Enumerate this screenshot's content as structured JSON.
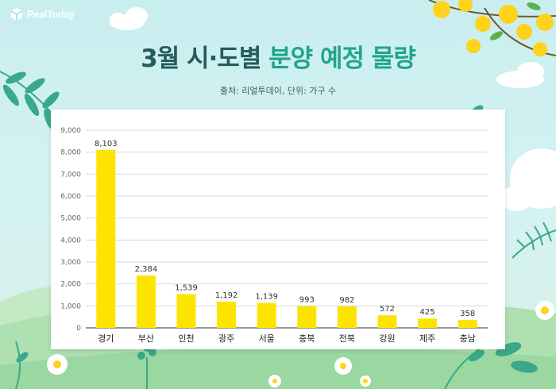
{
  "brand": {
    "name": "RealToday",
    "icon": "cube-logo-icon"
  },
  "header": {
    "title_part1": "3월 시·도별",
    "title_part2": "분양 예정 물량",
    "source": "출처: 리얼투데이, 단위: 가구 수"
  },
  "colors": {
    "bar": "#fde400",
    "title_dark": "#245b5b",
    "title_accent": "#22a48e",
    "grid": "#d9d9d9"
  },
  "chart_data": {
    "type": "bar",
    "categories": [
      "경기",
      "부산",
      "인천",
      "광주",
      "서울",
      "충북",
      "전북",
      "강원",
      "제주",
      "충남"
    ],
    "values": [
      8103,
      2384,
      1539,
      1192,
      1139,
      993,
      982,
      572,
      425,
      358
    ],
    "value_labels": [
      "8,103",
      "2,384",
      "1,539",
      "1,192",
      "1,139",
      "993",
      "982",
      "572",
      "425",
      "358"
    ],
    "y_ticks": [
      0,
      1000,
      2000,
      3000,
      4000,
      5000,
      6000,
      7000,
      8000,
      9000
    ],
    "y_tick_labels": [
      "0",
      "1,000",
      "2,000",
      "3,000",
      "4,000",
      "5,000",
      "6,000",
      "7,000",
      "8,000",
      "9,000"
    ],
    "ylim": [
      0,
      9000
    ],
    "grid": true,
    "legend": "none"
  }
}
